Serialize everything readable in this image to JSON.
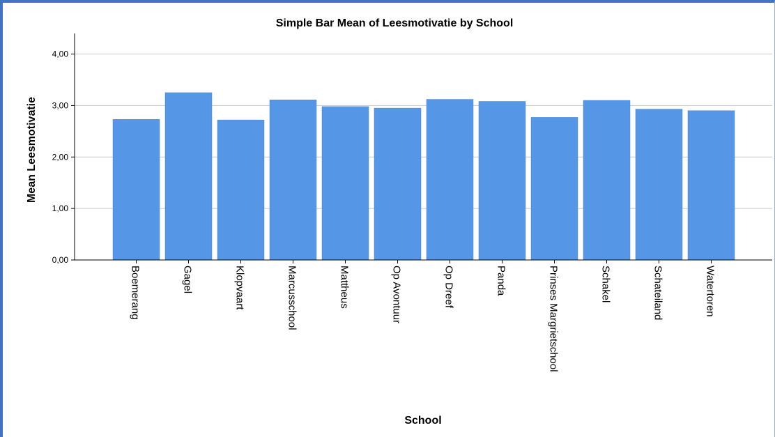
{
  "chart_data": {
    "type": "bar",
    "title": "Simple Bar Mean of Leesmotivatie by School",
    "xlabel": "School",
    "ylabel": "Mean Leesmotivatie",
    "categories": [
      "Boemerang",
      "Gagel",
      "Klopvaart",
      "Marcusschool",
      "Mattheus",
      "Op Avontuur",
      "Op Dreef",
      "Panda",
      "Prinses Margrietschool",
      "Schakel",
      "Schateiland",
      "Watertoren"
    ],
    "values": [
      2.73,
      3.25,
      2.72,
      3.11,
      2.98,
      2.95,
      3.12,
      3.08,
      2.77,
      3.1,
      2.93,
      2.9
    ],
    "ylim": [
      0,
      4.4
    ],
    "yticks": [
      "0,00",
      "1,00",
      "2,00",
      "3,00",
      "4,00"
    ],
    "grid": true,
    "bar_color": "#5596e6"
  }
}
